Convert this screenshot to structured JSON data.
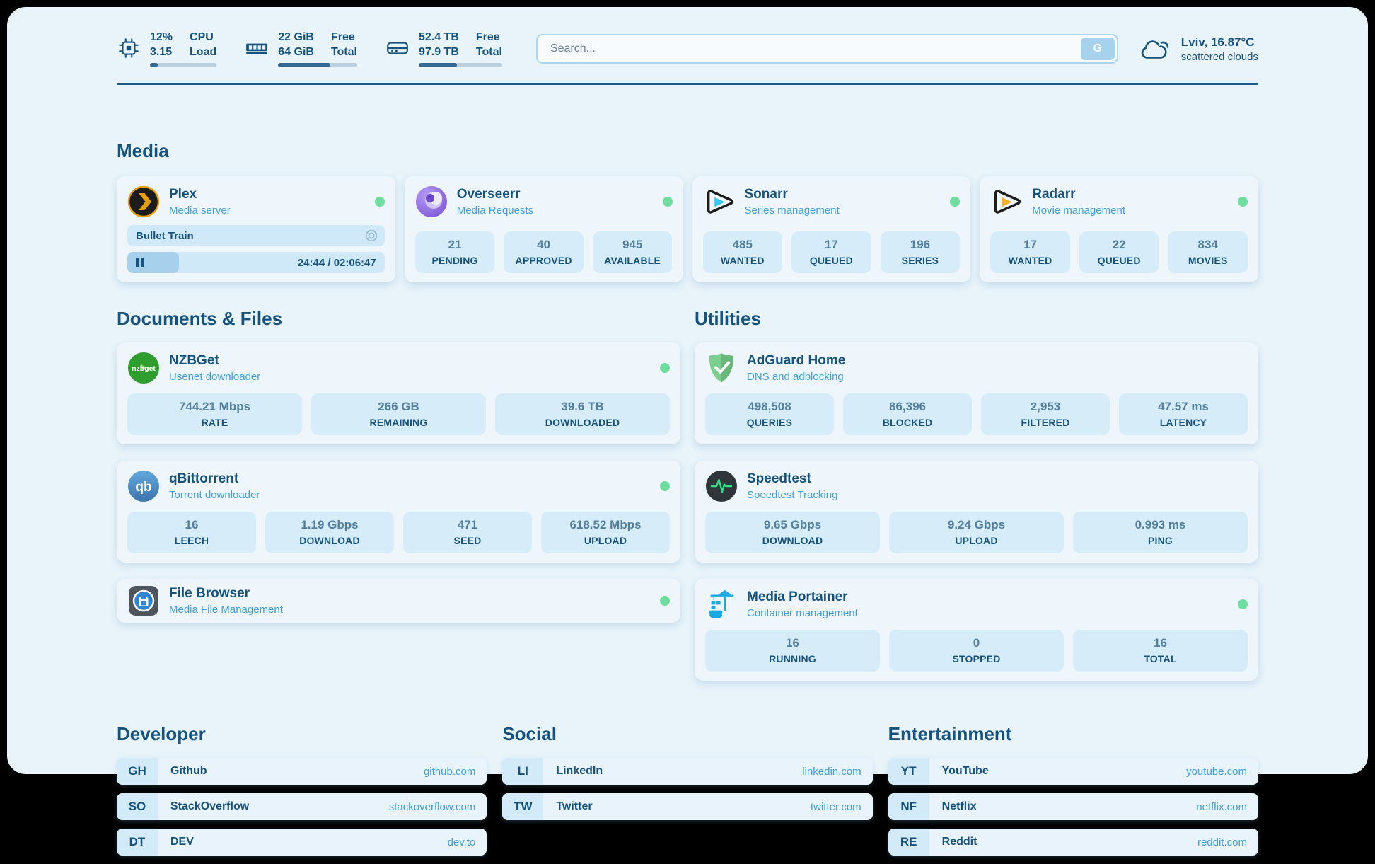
{
  "topbar": {
    "cpu": {
      "line1_value": "12%",
      "line2_value": "3.15",
      "line1_label": "CPU",
      "line2_label": "Load",
      "progress": 12
    },
    "ram": {
      "line1_value": "22 GiB",
      "line2_value": "64 GiB",
      "line1_label": "Free",
      "line2_label": "Total",
      "progress": 66
    },
    "disk": {
      "line1_value": "52.4 TB",
      "line2_value": "97.9 TB",
      "line1_label": "Free",
      "line2_label": "Total",
      "progress": 46
    },
    "search": {
      "placeholder": "Search...",
      "button_label": "G"
    },
    "weather": {
      "location_temp": "Lviv, 16.87°C",
      "condition": "scattered clouds"
    }
  },
  "icon_labels": {
    "nzbget": "nzbget",
    "qbittorrent": "qb"
  },
  "sections": {
    "media": {
      "title": "Media",
      "plex": {
        "name": "Plex",
        "subtitle": "Media server",
        "now_playing": "Bullet Train",
        "time": "24:44 / 02:06:47",
        "progress": 20
      },
      "overseerr": {
        "name": "Overseerr",
        "subtitle": "Media Requests",
        "stats": [
          {
            "value": "21",
            "label": "PENDING"
          },
          {
            "value": "40",
            "label": "APPROVED"
          },
          {
            "value": "945",
            "label": "AVAILABLE"
          }
        ]
      },
      "sonarr": {
        "name": "Sonarr",
        "subtitle": "Series management",
        "stats": [
          {
            "value": "485",
            "label": "WANTED"
          },
          {
            "value": "17",
            "label": "QUEUED"
          },
          {
            "value": "196",
            "label": "SERIES"
          }
        ]
      },
      "radarr": {
        "name": "Radarr",
        "subtitle": "Movie management",
        "stats": [
          {
            "value": "17",
            "label": "WANTED"
          },
          {
            "value": "22",
            "label": "QUEUED"
          },
          {
            "value": "834",
            "label": "MOVIES"
          }
        ]
      }
    },
    "documents": {
      "title": "Documents & Files",
      "nzbget": {
        "name": "NZBGet",
        "subtitle": "Usenet downloader",
        "stats": [
          {
            "value": "744.21 Mbps",
            "label": "RATE"
          },
          {
            "value": "266 GB",
            "label": "REMAINING"
          },
          {
            "value": "39.6 TB",
            "label": "DOWNLOADED"
          }
        ]
      },
      "qbittorrent": {
        "name": "qBittorrent",
        "subtitle": "Torrent downloader",
        "stats": [
          {
            "value": "16",
            "label": "LEECH"
          },
          {
            "value": "1.19 Gbps",
            "label": "DOWNLOAD"
          },
          {
            "value": "471",
            "label": "SEED"
          },
          {
            "value": "618.52 Mbps",
            "label": "UPLOAD"
          }
        ]
      },
      "filebrowser": {
        "name": "File Browser",
        "subtitle": "Media File Management"
      }
    },
    "utilities": {
      "title": "Utilities",
      "adguard": {
        "name": "AdGuard Home",
        "subtitle": "DNS and adblocking",
        "stats": [
          {
            "value": "498,508",
            "label": "QUERIES"
          },
          {
            "value": "86,396",
            "label": "BLOCKED"
          },
          {
            "value": "2,953",
            "label": "FILTERED"
          },
          {
            "value": "47.57 ms",
            "label": "LATENCY"
          }
        ]
      },
      "speedtest": {
        "name": "Speedtest",
        "subtitle": "Speedtest Tracking",
        "stats": [
          {
            "value": "9.65 Gbps",
            "label": "DOWNLOAD"
          },
          {
            "value": "9.24 Gbps",
            "label": "UPLOAD"
          },
          {
            "value": "0.993 ms",
            "label": "PING"
          }
        ]
      },
      "portainer": {
        "name": "Media Portainer",
        "subtitle": "Container management",
        "stats": [
          {
            "value": "16",
            "label": "RUNNING"
          },
          {
            "value": "0",
            "label": "STOPPED"
          },
          {
            "value": "16",
            "label": "TOTAL"
          }
        ]
      }
    },
    "bookmarks": {
      "developer": {
        "title": "Developer",
        "links": [
          {
            "abbr": "GH",
            "name": "Github",
            "url": "github.com"
          },
          {
            "abbr": "SO",
            "name": "StackOverflow",
            "url": "stackoverflow.com"
          },
          {
            "abbr": "DT",
            "name": "DEV",
            "url": "dev.to"
          }
        ]
      },
      "social": {
        "title": "Social",
        "links": [
          {
            "abbr": "LI",
            "name": "LinkedIn",
            "url": "linkedin.com"
          },
          {
            "abbr": "TW",
            "name": "Twitter",
            "url": "twitter.com"
          }
        ]
      },
      "entertainment": {
        "title": "Entertainment",
        "links": [
          {
            "abbr": "YT",
            "name": "YouTube",
            "url": "youtube.com"
          },
          {
            "abbr": "NF",
            "name": "Netflix",
            "url": "netflix.com"
          },
          {
            "abbr": "RE",
            "name": "Reddit",
            "url": "reddit.com"
          }
        ]
      }
    }
  },
  "colors": {
    "accent": "#3f9fe0",
    "dark_blue": "#15537e",
    "status_green": "#6edd9e"
  }
}
